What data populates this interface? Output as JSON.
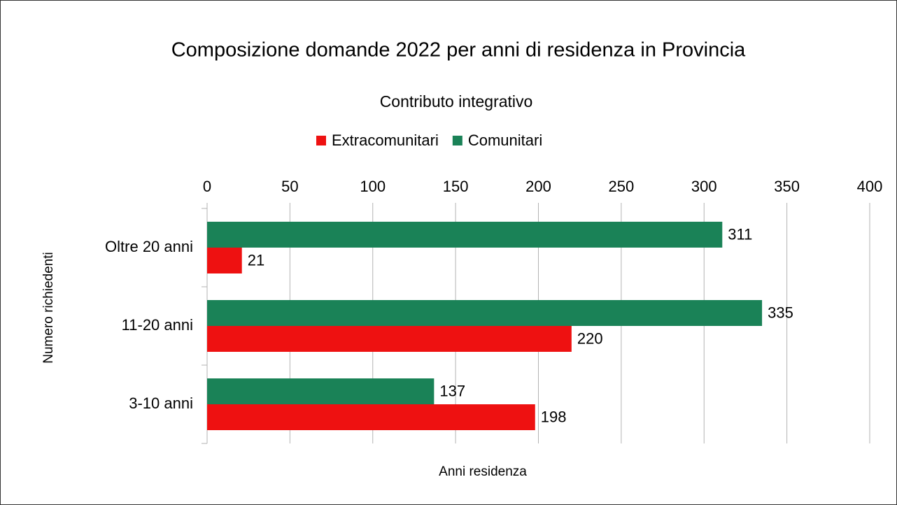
{
  "chart_data": {
    "type": "barh",
    "title": "Composizione domande 2022 per anni di residenza in Provincia",
    "subtitle": "Contributo integrativo",
    "x_label": "Anni residenza",
    "y_label": "Numero richiedenti",
    "categories": [
      "Oltre 20 anni",
      "11-20 anni",
      "3-10 anni"
    ],
    "series": [
      {
        "name": "Extracomunitari",
        "color": "#ee1111",
        "values": [
          21,
          220,
          198
        ]
      },
      {
        "name": "Comunitari",
        "color": "#1a8257",
        "values": [
          311,
          335,
          137
        ]
      }
    ],
    "xlim": [
      0,
      400
    ],
    "xticks": [
      0,
      50,
      100,
      150,
      200,
      250,
      300,
      350,
      400
    ],
    "grid": true,
    "legend": "top"
  }
}
